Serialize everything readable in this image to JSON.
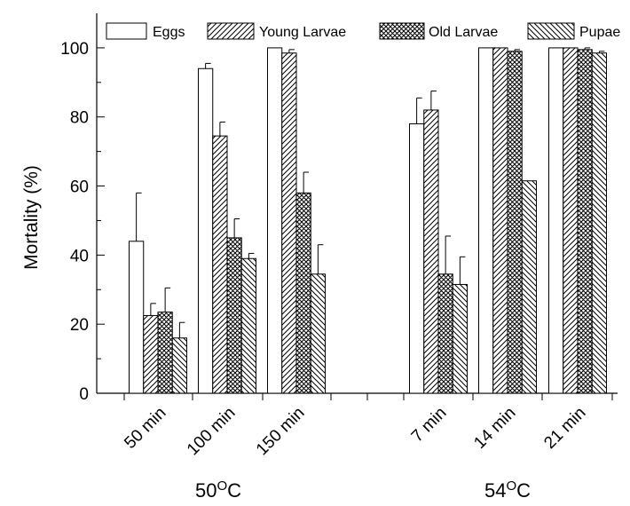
{
  "chart_data": {
    "type": "bar",
    "title": "",
    "ylabel": "Mortality (%)",
    "xlabel": "",
    "ylim": [
      0,
      110
    ],
    "yticks": [
      0,
      20,
      40,
      60,
      80,
      100
    ],
    "categories": [
      "50 min",
      "100 min",
      "150 min",
      "7 min",
      "14 min",
      "21 min"
    ],
    "temperature_groups": [
      {
        "label_base": "50",
        "label_sup": "O",
        "label_unit": "C",
        "categories": [
          "50 min",
          "100 min",
          "150 min"
        ]
      },
      {
        "label_base": "54",
        "label_sup": "O",
        "label_unit": "C",
        "categories": [
          "7 min",
          "14 min",
          "21 min"
        ]
      }
    ],
    "legend_position": "top",
    "grid": false,
    "series": [
      {
        "name": "Eggs",
        "pattern": "blank",
        "values": [
          44,
          94,
          100,
          78,
          100,
          100
        ],
        "errors": [
          14,
          1.5,
          0,
          7.5,
          0,
          0
        ]
      },
      {
        "name": "Young Larvae",
        "pattern": "diagonal",
        "values": [
          22.5,
          74.5,
          98.5,
          82,
          100,
          100
        ],
        "errors": [
          3.5,
          4,
          1,
          5.5,
          0,
          0
        ]
      },
      {
        "name": "Old Larvae",
        "pattern": "crosshatch",
        "values": [
          23.5,
          45,
          58,
          34.5,
          99,
          99.5
        ],
        "errors": [
          7,
          5.5,
          6,
          11,
          0.5,
          0.5
        ]
      },
      {
        "name": "Pupae",
        "pattern": "back-diagonal",
        "values": [
          16,
          39,
          34.5,
          31.5,
          61.5,
          98.5
        ],
        "errors": [
          4.5,
          1.5,
          8.5,
          8,
          0,
          0.5
        ]
      }
    ]
  }
}
